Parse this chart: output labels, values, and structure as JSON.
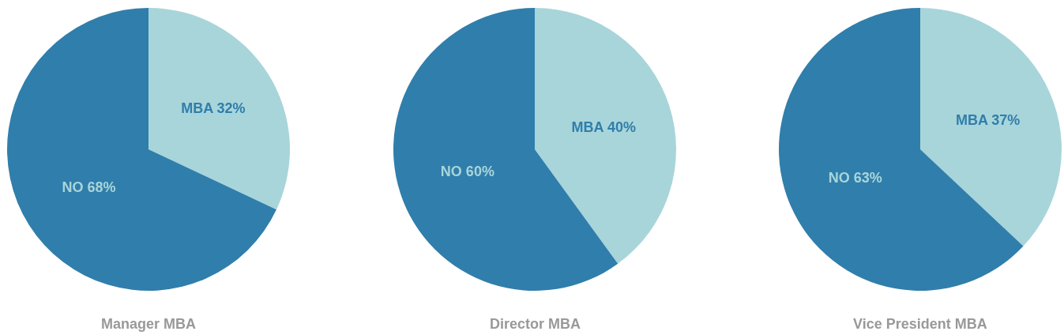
{
  "chart_data": [
    {
      "type": "pie",
      "title": "Manager MBA",
      "categories": [
        "MBA",
        "NO"
      ],
      "values": [
        32,
        68
      ],
      "value_labels": [
        "32%",
        "68%"
      ],
      "colors": [
        "#a8d5da",
        "#307eab"
      ],
      "legend": false
    },
    {
      "type": "pie",
      "title": "Director MBA",
      "categories": [
        "MBA",
        "NO"
      ],
      "values": [
        40,
        60
      ],
      "value_labels": [
        "40%",
        "60%"
      ],
      "colors": [
        "#a8d5da",
        "#307eab"
      ],
      "legend": false
    },
    {
      "type": "pie",
      "title": "Vice President MBA",
      "categories": [
        "MBA",
        "NO"
      ],
      "values": [
        37,
        63
      ],
      "value_labels": [
        "37%",
        "63%"
      ],
      "colors": [
        "#a8d5da",
        "#307eab"
      ],
      "legend": false
    }
  ]
}
